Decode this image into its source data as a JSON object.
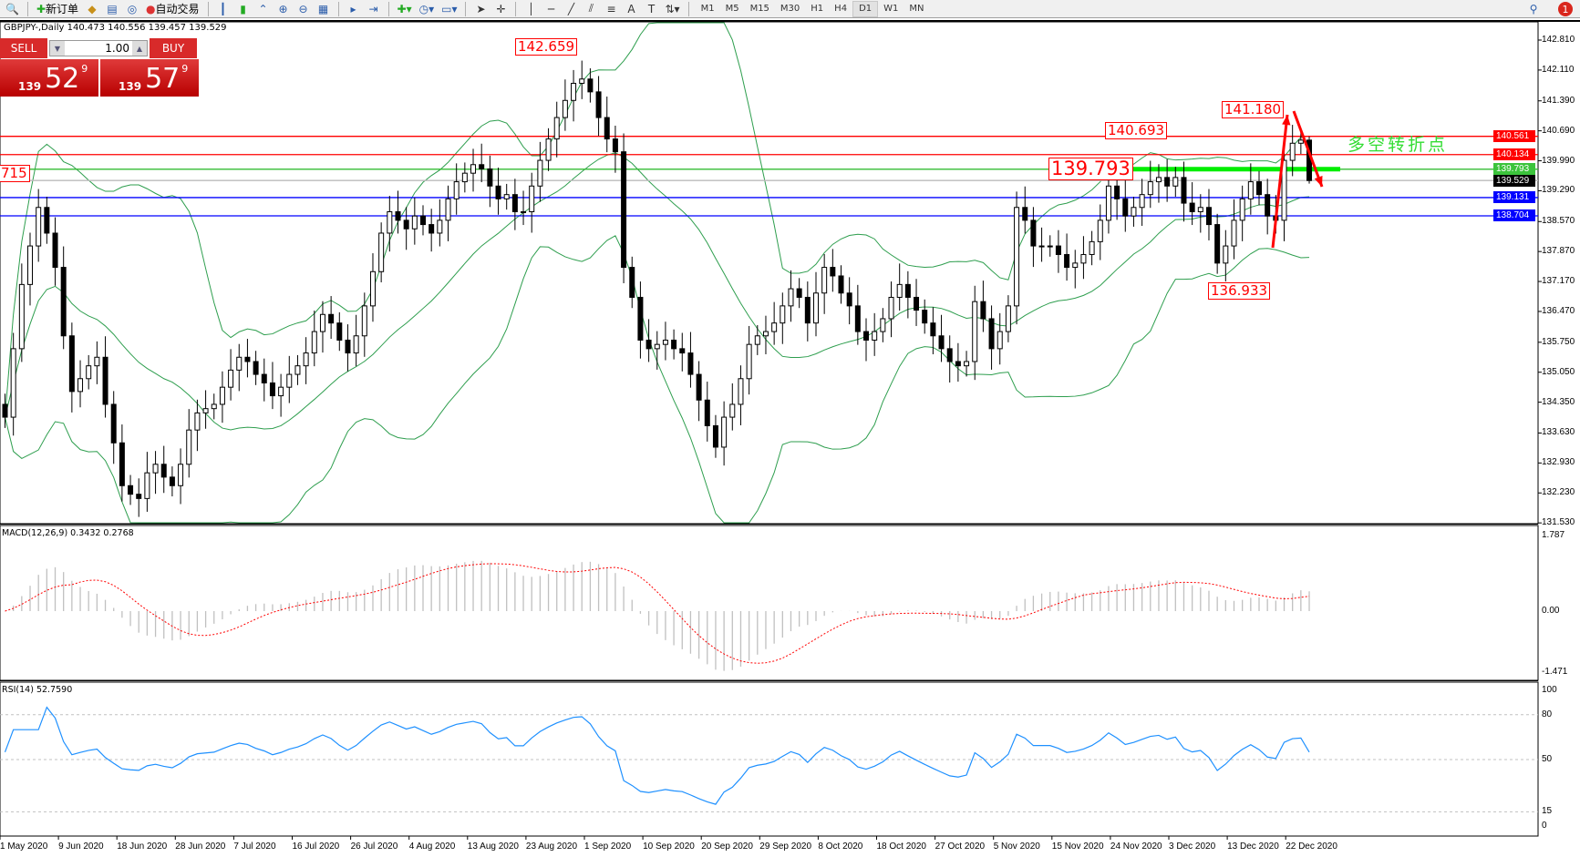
{
  "toolbar": {
    "new_order": "新订单",
    "auto_trading": "自动交易",
    "timeframes": [
      "M1",
      "M5",
      "M15",
      "M30",
      "H1",
      "H4",
      "D1",
      "W1",
      "MN"
    ],
    "active_timeframe": "D1",
    "notification_count": "1"
  },
  "symbol_header": "GBPJPY-,Daily  140.473 140.556 139.457 139.529",
  "trade_panel": {
    "sell_label": "SELL",
    "buy_label": "BUY",
    "lot": "1.00",
    "sell_prefix": "139",
    "sell_big": "52",
    "sell_sup": "9",
    "buy_prefix": "139",
    "buy_big": "57",
    "buy_sup": "9"
  },
  "price_axis": [
    "142.810",
    "142.110",
    "141.390",
    "140.690",
    "139.990",
    "139.290",
    "138.570",
    "137.870",
    "137.170",
    "136.470",
    "135.750",
    "135.050",
    "134.350",
    "133.630",
    "132.930",
    "132.230",
    "131.530"
  ],
  "levels": [
    {
      "value": 140.561,
      "label": "140.561",
      "color": "#ff0000"
    },
    {
      "value": 140.134,
      "label": "140.134",
      "color": "#ff0000"
    },
    {
      "value": 139.793,
      "label": "139.793",
      "color": "#33bb33"
    },
    {
      "value": 139.529,
      "label": "139.529",
      "color": "#000000"
    },
    {
      "value": 139.131,
      "label": "139.131",
      "color": "#0000ff"
    },
    {
      "value": 138.704,
      "label": "138.704",
      "color": "#0000ff"
    }
  ],
  "annotations": {
    "a1": "142.659",
    "a2": "141.180",
    "a3": "140.693",
    "a4": "139.793",
    "a5": "136.933",
    "a6": "715",
    "note": "多空转折点"
  },
  "macd": {
    "label": "MACD(12,26,9) 0.3432 0.2768",
    "axis": [
      "1.787",
      "0.00",
      "-1.471"
    ]
  },
  "rsi": {
    "label": "RSI(14) 52.7590",
    "axis": [
      "100",
      "80",
      "50",
      "15",
      "0"
    ]
  },
  "dates": [
    "1 May 2020",
    "9 Jun 2020",
    "18 Jun 2020",
    "28 Jun 2020",
    "7 Jul 2020",
    "16 Jul 2020",
    "26 Jul 2020",
    "4 Aug 2020",
    "13 Aug 2020",
    "23 Aug 2020",
    "1 Sep 2020",
    "10 Sep 2020",
    "20 Sep 2020",
    "29 Sep 2020",
    "8 Oct 2020",
    "18 Oct 2020",
    "27 Oct 2020",
    "5 Nov 2020",
    "15 Nov 2020",
    "24 Nov 2020",
    "3 Dec 2020",
    "13 Dec 2020",
    "22 Dec 2020"
  ],
  "chart_data": {
    "type": "candlestick",
    "symbol": "GBPJPY-",
    "timeframe": "Daily",
    "ylim": [
      131.53,
      142.81
    ],
    "close": [
      134.0,
      135.6,
      137.1,
      138.0,
      138.9,
      138.3,
      137.5,
      135.9,
      134.6,
      134.9,
      135.2,
      135.4,
      134.3,
      133.4,
      132.4,
      132.2,
      132.1,
      132.7,
      132.9,
      132.6,
      132.4,
      132.9,
      133.7,
      134.1,
      134.2,
      134.3,
      134.7,
      135.1,
      135.4,
      135.3,
      135.0,
      134.8,
      134.5,
      134.7,
      135.0,
      135.2,
      135.5,
      136.0,
      136.4,
      136.2,
      135.8,
      135.5,
      135.9,
      136.6,
      137.4,
      138.3,
      138.8,
      138.6,
      138.4,
      138.7,
      138.5,
      138.3,
      138.6,
      139.1,
      139.5,
      139.7,
      139.9,
      139.8,
      139.4,
      139.1,
      139.2,
      138.8,
      138.8,
      139.4,
      140.0,
      140.5,
      141.0,
      141.4,
      141.8,
      141.9,
      141.6,
      141.0,
      140.5,
      140.2,
      137.5,
      136.8,
      135.8,
      135.6,
      135.7,
      135.8,
      135.6,
      135.5,
      135.0,
      134.4,
      133.8,
      133.3,
      134.0,
      134.3,
      134.9,
      135.7,
      135.9,
      136.0,
      136.2,
      136.6,
      137.0,
      136.8,
      136.2,
      136.9,
      137.5,
      137.3,
      136.9,
      136.6,
      136.0,
      135.8,
      136.0,
      136.3,
      136.8,
      137.1,
      136.8,
      136.5,
      136.2,
      135.9,
      135.6,
      135.3,
      135.2,
      135.3,
      136.7,
      136.3,
      135.6,
      136.0,
      136.6,
      138.9,
      138.6,
      138.0,
      138.0,
      138.0,
      137.8,
      137.5,
      137.6,
      137.8,
      138.1,
      138.6,
      139.4,
      139.1,
      138.7,
      138.9,
      139.2,
      139.5,
      139.6,
      139.4,
      139.6,
      139.0,
      138.8,
      138.9,
      138.5,
      137.6,
      138.0,
      138.6,
      139.1,
      139.5,
      139.2,
      138.7,
      138.6,
      140.0,
      140.4,
      140.473,
      139.529
    ],
    "last_bar": {
      "open": 140.473,
      "high": 140.556,
      "low": 139.457,
      "close": 139.529
    },
    "indicators": [
      "Bollinger Bands",
      "MACD(12,26,9)",
      "RSI(14)"
    ],
    "rsi_levels": [
      80,
      50,
      15
    ],
    "macd_range": [
      -1.471,
      1.787
    ]
  }
}
